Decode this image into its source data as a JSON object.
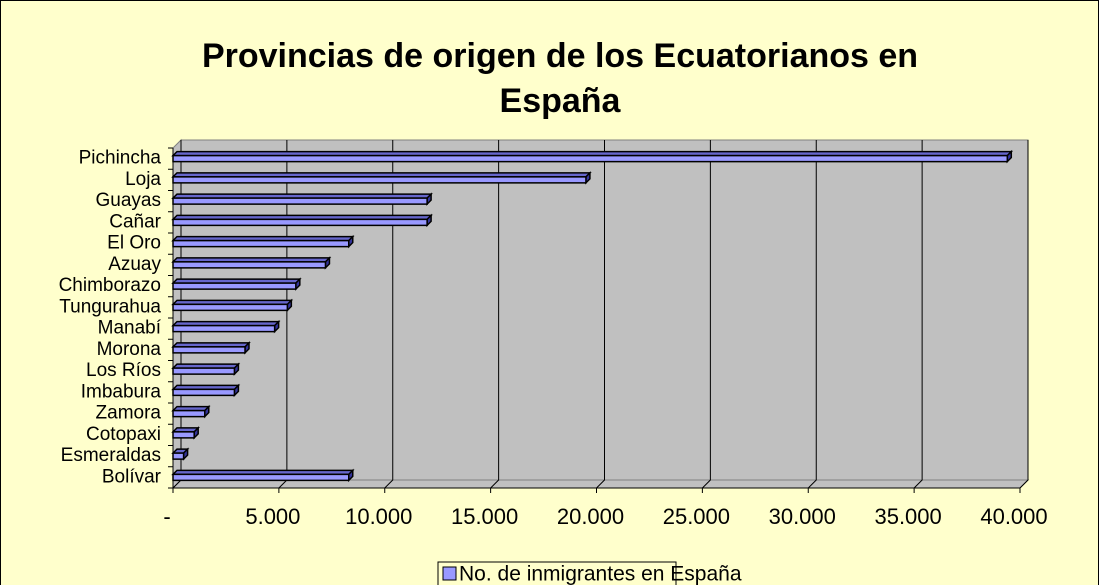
{
  "chart_data": {
    "type": "bar",
    "orientation": "horizontal",
    "title": "Provincias de origen de los Ecuatorianos en España",
    "categories": [
      "Pichincha",
      "Loja",
      "Guayas",
      "Cañar",
      "El Oro",
      "Azuay",
      "Chimborazo",
      "Tungurahua",
      "Manabí",
      "Morona",
      "Los Ríos",
      "Imbabura",
      "Zamora",
      "Cotopaxi",
      "Esmeraldas",
      "Bolívar"
    ],
    "series": [
      {
        "name": "No. de inmigrantes en España",
        "color": "#9999ff",
        "values": [
          39400,
          19500,
          12000,
          12000,
          8300,
          7200,
          5800,
          5400,
          4800,
          3400,
          2900,
          2900,
          1500,
          1000,
          500,
          8300
        ]
      }
    ],
    "xlim": [
      0,
      40000
    ],
    "xticks": [
      {
        "value": 0,
        "label": "-"
      },
      {
        "value": 5000,
        "label": "5.000"
      },
      {
        "value": 10000,
        "label": "10.000"
      },
      {
        "value": 15000,
        "label": "15.000"
      },
      {
        "value": 20000,
        "label": "20.000"
      },
      {
        "value": 25000,
        "label": "25.000"
      },
      {
        "value": 30000,
        "label": "30.000"
      },
      {
        "value": 35000,
        "label": "35.000"
      },
      {
        "value": 40000,
        "label": "40.000"
      }
    ],
    "grid": true,
    "legend": "bottom"
  }
}
